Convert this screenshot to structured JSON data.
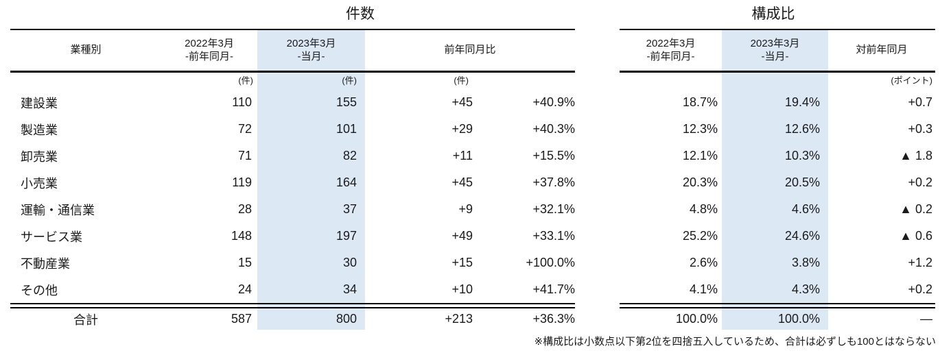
{
  "colors": {
    "highlight": "#dce9f5",
    "rule": "#000000",
    "text": "#1a1a1a"
  },
  "kensu": {
    "title": "件数",
    "headers": {
      "industry": "業種別",
      "prev_line1": "2022年3月",
      "prev_line2": "-前年同月-",
      "cur_line1": "2023年3月",
      "cur_line2": "-当月-",
      "yoy": "前年同月比"
    },
    "units": {
      "prev": "(件)",
      "cur": "(件)",
      "diff": "(件)"
    }
  },
  "kosei": {
    "title": "構成比",
    "headers": {
      "prev_line1": "2022年3月",
      "prev_line2": "-前年同月-",
      "cur_line1": "2023年3月",
      "cur_line2": "-当月-",
      "yoy": "対前年同月"
    },
    "units": {
      "diff": "(ポイント)"
    }
  },
  "rows": [
    {
      "label": "建設業",
      "prev": "110",
      "cur": "155",
      "diff": "+45",
      "pct": "+40.9%",
      "ratio_prev": "18.7%",
      "ratio_cur": "19.4%",
      "ratio_diff": "+0.7"
    },
    {
      "label": "製造業",
      "prev": "72",
      "cur": "101",
      "diff": "+29",
      "pct": "+40.3%",
      "ratio_prev": "12.3%",
      "ratio_cur": "12.6%",
      "ratio_diff": "+0.3"
    },
    {
      "label": "卸売業",
      "prev": "71",
      "cur": "82",
      "diff": "+11",
      "pct": "+15.5%",
      "ratio_prev": "12.1%",
      "ratio_cur": "10.3%",
      "ratio_diff": "▲ 1.8"
    },
    {
      "label": "小売業",
      "prev": "119",
      "cur": "164",
      "diff": "+45",
      "pct": "+37.8%",
      "ratio_prev": "20.3%",
      "ratio_cur": "20.5%",
      "ratio_diff": "+0.2"
    },
    {
      "label": "運輸・通信業",
      "prev": "28",
      "cur": "37",
      "diff": "+9",
      "pct": "+32.1%",
      "ratio_prev": "4.8%",
      "ratio_cur": "4.6%",
      "ratio_diff": "▲ 0.2"
    },
    {
      "label": "サービス業",
      "prev": "148",
      "cur": "197",
      "diff": "+49",
      "pct": "+33.1%",
      "ratio_prev": "25.2%",
      "ratio_cur": "24.6%",
      "ratio_diff": "▲ 0.6"
    },
    {
      "label": "不動産業",
      "prev": "15",
      "cur": "30",
      "diff": "+15",
      "pct": "+100.0%",
      "ratio_prev": "2.6%",
      "ratio_cur": "3.8%",
      "ratio_diff": "+1.2"
    },
    {
      "label": "その他",
      "prev": "24",
      "cur": "34",
      "diff": "+10",
      "pct": "+41.7%",
      "ratio_prev": "4.1%",
      "ratio_cur": "4.3%",
      "ratio_diff": "+0.2"
    }
  ],
  "total": {
    "label": "合計",
    "prev": "587",
    "cur": "800",
    "diff": "+213",
    "pct": "+36.3%",
    "ratio_prev": "100.0%",
    "ratio_cur": "100.0%",
    "ratio_diff": "—"
  },
  "footnote": "※構成比は小数点以下第2位を四捨五入しているため、合計は必ずしも100とはならない"
}
